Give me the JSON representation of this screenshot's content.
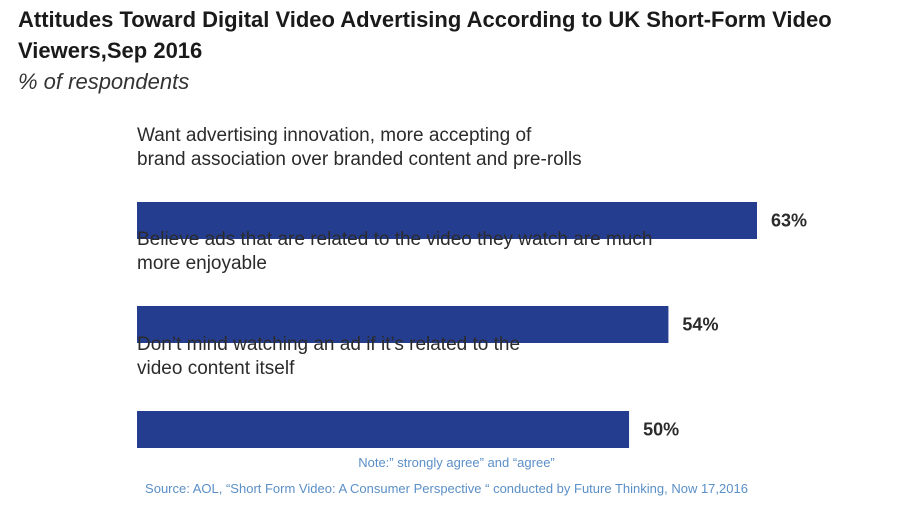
{
  "header": {
    "title": "Attitudes Toward Digital Video Advertising According to UK Short-Form Video Viewers,Sep 2016",
    "subtitle": "% of respondents"
  },
  "footer": {
    "note": "Note:” strongly agree” and “agree”",
    "source": "Source: AOL, “Short Form Video: A Consumer Perspective “ conducted by Future Thinking, Now 17,2016"
  },
  "chart_data": {
    "type": "bar",
    "orientation": "horizontal",
    "title": "Attitudes Toward Digital Video Advertising According to UK Short-Form Video Viewers,Sep 2016",
    "subtitle": "% of respondents",
    "categories": [
      [
        "Want advertising innovation, more accepting of",
        "brand association over branded content and pre-rolls"
      ],
      [
        "Believe ads that are related to the video they watch are much",
        "more enjoyable"
      ],
      [
        "Don’t mind watching an ad if it’s related to the",
        "video content itself"
      ]
    ],
    "values": [
      63,
      54,
      50
    ],
    "value_labels": [
      "63%",
      "54%",
      "50%"
    ],
    "unit": "%",
    "xlim": [
      0,
      100
    ],
    "bar_color": "#253d8f",
    "grid": false
  }
}
